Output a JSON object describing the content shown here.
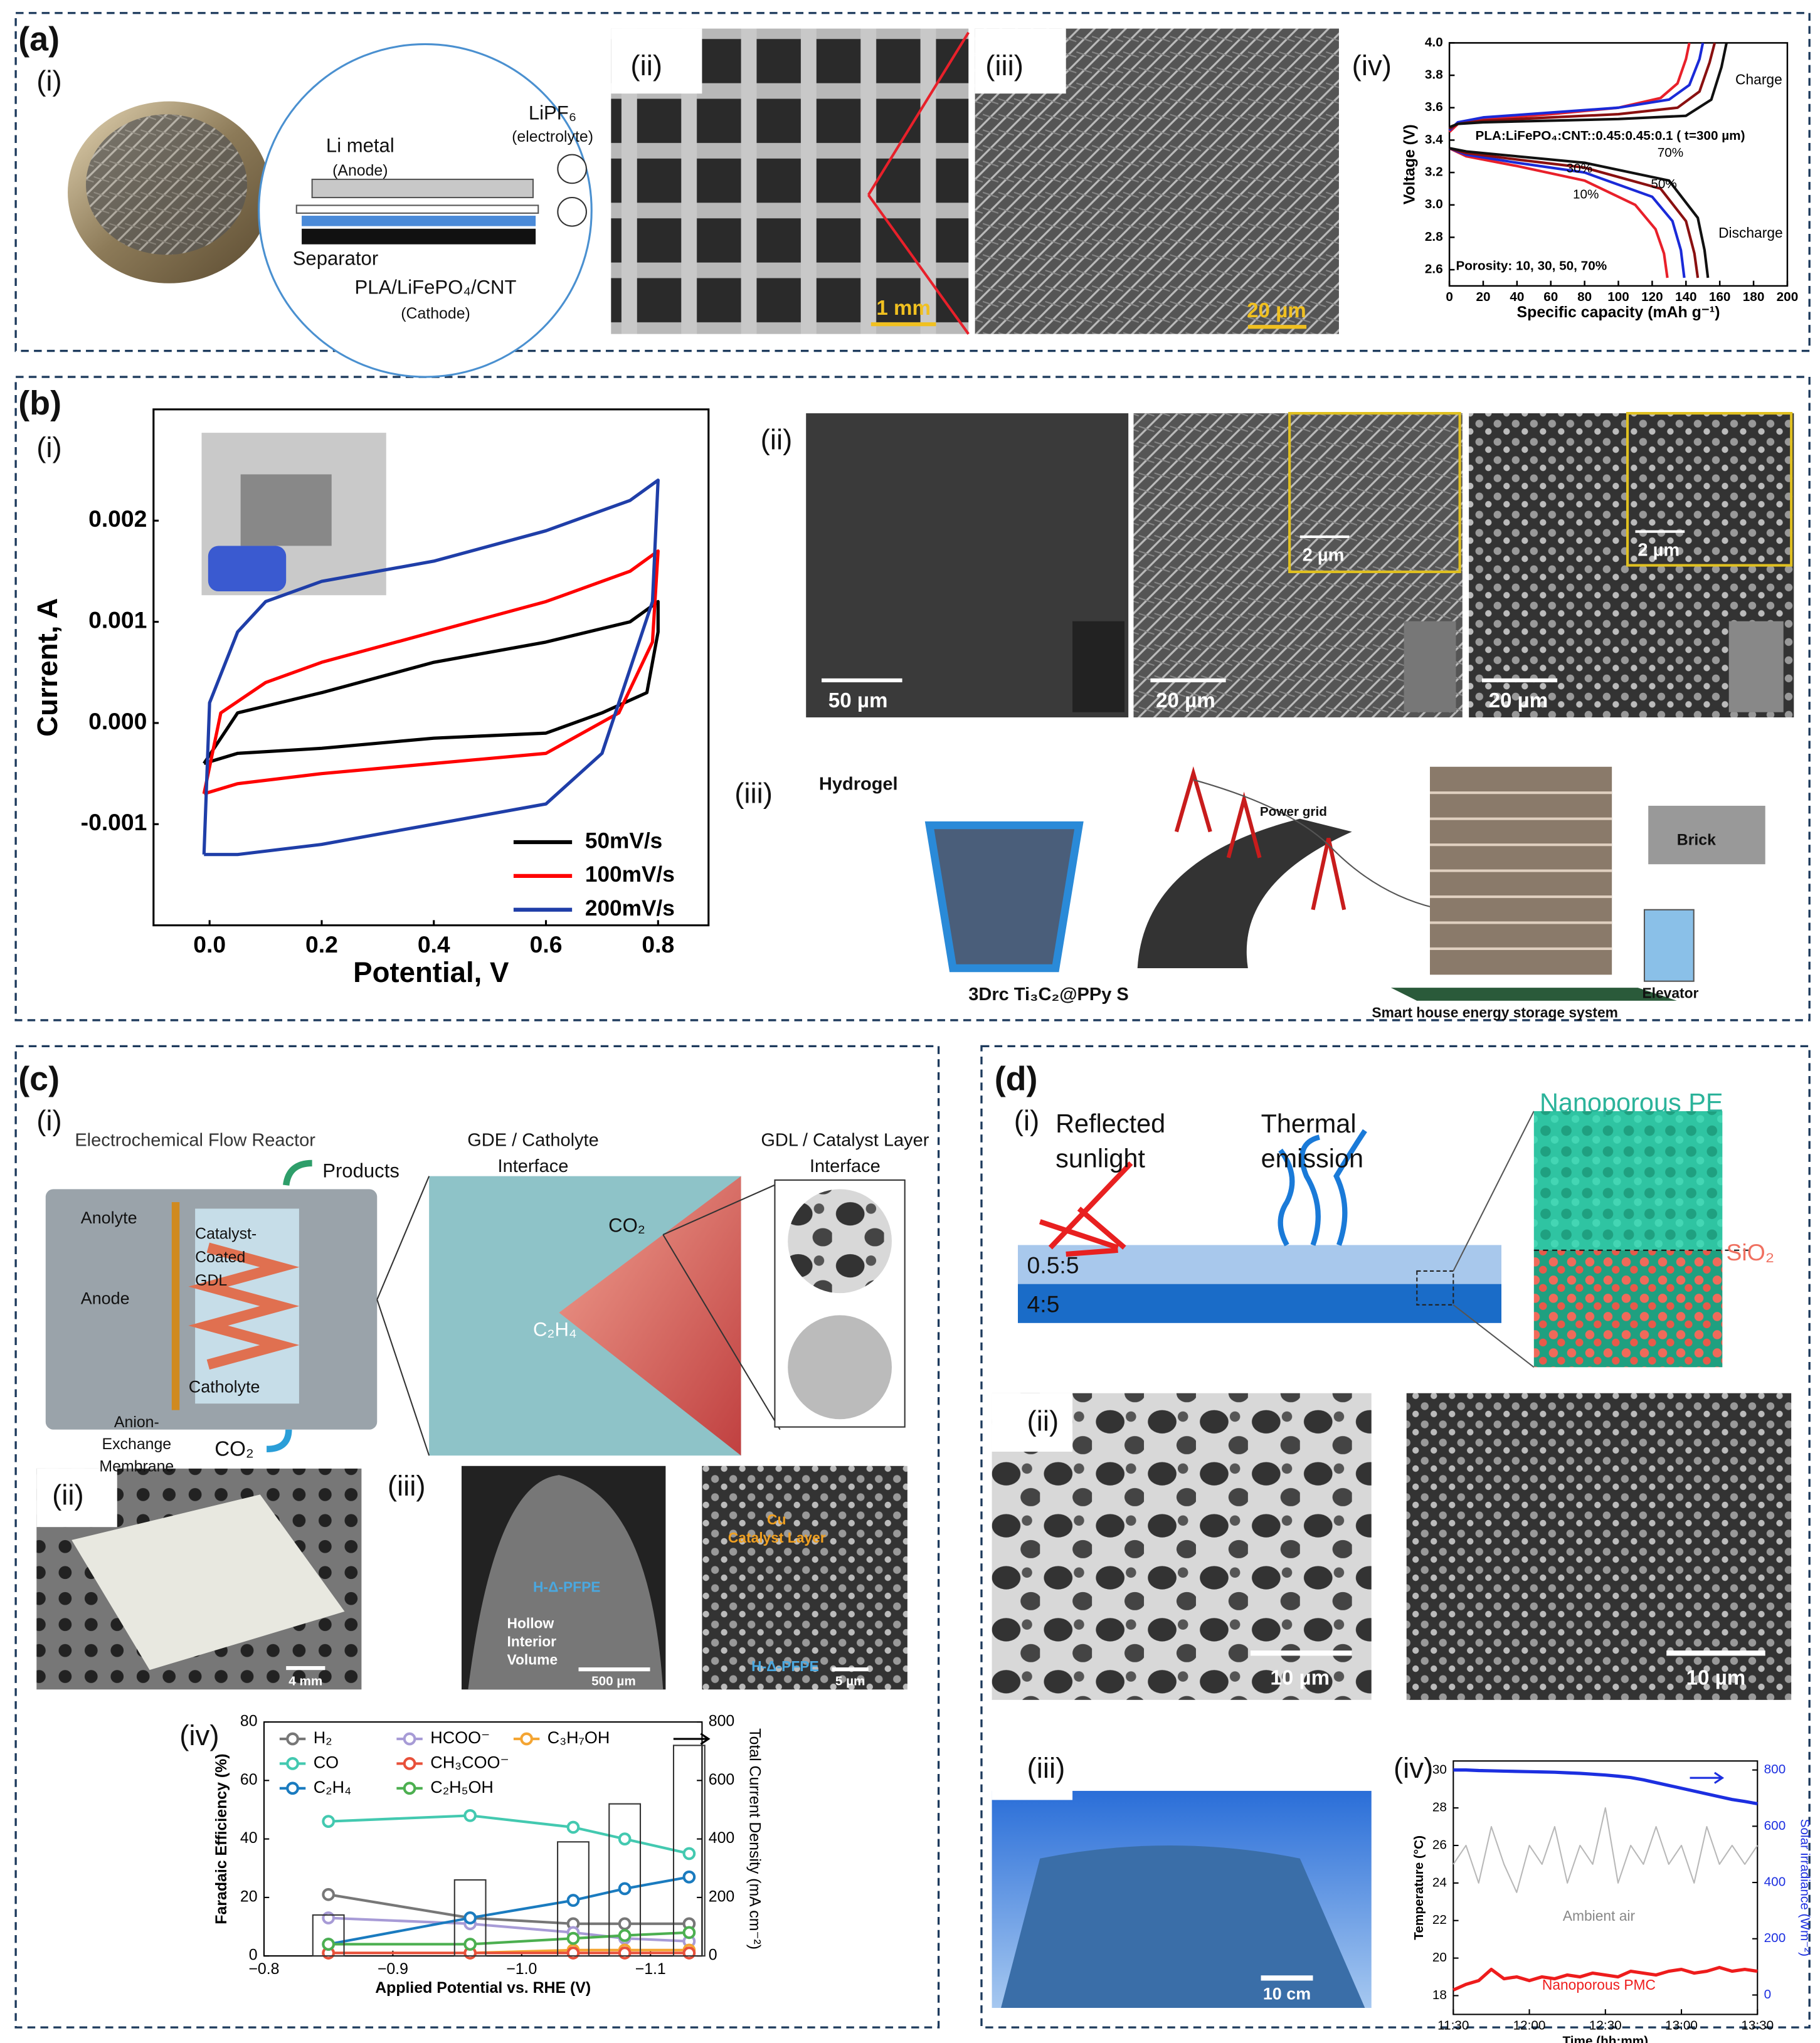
{
  "texts": [
    "(a)",
    "(i)",
    "Li metal",
    "(Anode)",
    "LiPF₆",
    "(electrolyte)",
    "Separator",
    "PLA/LiFePO₄/CNT",
    "(Cathode)",
    "(ii)",
    "1 mm",
    "(iii)",
    "20 µm",
    "(iv)",
    "(b)",
    "(i)",
    "(ii)",
    "50 µm",
    "20 µm",
    "2 µm",
    "20 µm",
    "2 µm",
    "(iii)",
    "Hydrogel",
    "Power grid",
    "Brick",
    "Elevator",
    "3Drc Ti₃C₂@PPy S",
    "Smart house energy storage system",
    "(c)",
    "(i)",
    "Electrochemical Flow Reactor",
    "Products",
    "GDE / Catholyte",
    "Interface",
    "GDL / Catalyst Layer",
    "Interface",
    "Anolyte",
    "Catalyst-",
    "Coated",
    "GDL",
    "Anode",
    "Catholyte",
    "Anion-",
    "Exchange",
    "Membrane",
    "CO₂",
    "CO₂",
    "C₂H₄",
    "(ii)",
    "4 mm",
    "(iii)",
    "Hollow",
    "Interior",
    "Volume",
    "H-Δ-PFPE",
    "500 µm",
    "Cu",
    "Catalyst Layer",
    "H-Δ-PFPE",
    "5 µm",
    "(iv)",
    "(d)",
    "(i)",
    "Reflected",
    "sunlight",
    "Thermal",
    "emission",
    "Nanoporous PE",
    "SiO₂",
    "0.5:5",
    "4:5",
    "(ii)",
    "10 µm",
    "10 µm",
    "(iii)",
    "10 cm",
    "(iv)"
  ],
  "chart_data": [
    {
      "type": "line",
      "xlabel": "Specific capacity (mAh g⁻¹)",
      "ylabel": "Voltage (V)",
      "xlim": [
        0,
        200
      ],
      "xticks": [
        0,
        20,
        40,
        60,
        80,
        100,
        120,
        140,
        160,
        180,
        200
      ],
      "ylim": [
        2.5,
        4.0
      ],
      "yticks": [
        2.6,
        2.8,
        {
          "value": 3,
          "label": "3.0"
        },
        3.2,
        3.4,
        3.6,
        3.8,
        {
          "value": 4,
          "label": "4.0"
        }
      ],
      "annotations": [
        "Charge",
        "Discharge",
        "PLA:LiFePO₄:CNT::0.45:0.45:0.1 ( t=300 µm)",
        "Porosity: 10, 30, 50, 70%",
        "70%",
        "50%",
        "30%",
        "10%"
      ],
      "series": [
        {
          "color": "#e8202a",
          "x": [
            0,
            5,
            20,
            60,
            100,
            125,
            135,
            140,
            142
          ],
          "values": [
            3.45,
            3.5,
            3.53,
            3.56,
            3.6,
            3.66,
            3.75,
            3.9,
            4.0
          ]
        },
        {
          "color": "#1a2ad8",
          "x": [
            0,
            5,
            20,
            60,
            100,
            130,
            142,
            148,
            150
          ],
          "values": [
            3.46,
            3.51,
            3.54,
            3.57,
            3.6,
            3.65,
            3.74,
            3.9,
            4.0
          ]
        },
        {
          "color": "#8a1010",
          "x": [
            0,
            5,
            20,
            60,
            100,
            135,
            148,
            154,
            157
          ],
          "values": [
            3.47,
            3.5,
            3.52,
            3.54,
            3.56,
            3.6,
            3.7,
            3.88,
            4.0
          ]
        },
        {
          "color": "#111111",
          "x": [
            0,
            5,
            20,
            60,
            100,
            140,
            155,
            161,
            164
          ],
          "values": [
            3.48,
            3.5,
            3.51,
            3.52,
            3.53,
            3.55,
            3.65,
            3.85,
            4.0
          ]
        },
        {
          "color": "#e8202a",
          "x": [
            0,
            10,
            40,
            80,
            110,
            122,
            127,
            129
          ],
          "values": [
            3.35,
            3.3,
            3.24,
            3.15,
            3.0,
            2.85,
            2.7,
            2.55
          ]
        },
        {
          "color": "#1a2ad8",
          "x": [
            0,
            10,
            40,
            80,
            120,
            132,
            137,
            139
          ],
          "values": [
            3.35,
            3.31,
            3.26,
            3.2,
            3.05,
            2.9,
            2.72,
            2.55
          ]
        },
        {
          "color": "#8a1010",
          "x": [
            0,
            10,
            40,
            80,
            125,
            140,
            145,
            147
          ],
          "values": [
            3.35,
            3.32,
            3.28,
            3.23,
            3.1,
            2.9,
            2.7,
            2.55
          ]
        },
        {
          "color": "#111111",
          "x": [
            0,
            10,
            40,
            80,
            130,
            147,
            151,
            153
          ],
          "values": [
            3.35,
            3.33,
            3.3,
            3.26,
            3.15,
            2.92,
            2.72,
            2.55
          ]
        }
      ]
    },
    {
      "type": "line",
      "xlabel": "Potential, V",
      "ylabel": "Current, A",
      "xlim": [
        -0.1,
        0.89
      ],
      "xticks": [
        {
          "value": 0,
          "label": "0.0"
        },
        0.2,
        0.4,
        0.6,
        0.8
      ],
      "ylim": [
        -0.002,
        0.0031
      ],
      "yticks": [
        -0.001,
        {
          "value": 0,
          "label": "0.000"
        },
        0.001,
        0.002
      ],
      "legend": "lower right",
      "series": [
        {
          "name": "50mV/s",
          "color": "#000000",
          "x": [
            -0.01,
            0.05,
            0.2,
            0.4,
            0.6,
            0.75,
            0.8,
            0.8,
            0.78,
            0.7,
            0.6,
            0.4,
            0.2,
            0.05,
            -0.01
          ],
          "values": [
            -0.0004,
            0.0001,
            0.0003,
            0.0006,
            0.0008,
            0.001,
            0.0012,
            0.0009,
            0.0003,
            0.0001,
            -0.0001,
            -0.00015,
            -0.00025,
            -0.0003,
            -0.0004
          ]
        },
        {
          "name": "100mV/s",
          "color": "#ff0000",
          "x": [
            -0.01,
            0.02,
            0.1,
            0.2,
            0.4,
            0.6,
            0.75,
            0.8,
            0.79,
            0.73,
            0.6,
            0.4,
            0.2,
            0.05,
            -0.01
          ],
          "values": [
            -0.0007,
            0.0001,
            0.0004,
            0.0006,
            0.0009,
            0.0012,
            0.0015,
            0.0017,
            0.0008,
            0.0001,
            -0.0003,
            -0.0004,
            -0.0005,
            -0.0006,
            -0.0007
          ]
        },
        {
          "name": "200mV/s",
          "color": "#1f3ea8",
          "x": [
            -0.01,
            0,
            0.05,
            0.1,
            0.2,
            0.4,
            0.6,
            0.75,
            0.8,
            0.79,
            0.7,
            0.6,
            0.4,
            0.2,
            0.05,
            -0.01
          ],
          "values": [
            -0.0013,
            0.0002,
            0.0009,
            0.0012,
            0.0014,
            0.0016,
            0.0019,
            0.0022,
            0.0024,
            0.0012,
            -0.0003,
            -0.0008,
            -0.001,
            -0.0012,
            -0.0013,
            -0.0013
          ]
        }
      ]
    },
    {
      "type": "line",
      "xlabel": "Applied Potential vs. RHE (V)",
      "ylabel": "Faradaic Efficiency (%)",
      "y2label": "Total Current Density (mA cm⁻²)",
      "xlim": [
        -0.8,
        -1.14
      ],
      "xticks": [
        {
          "value": -0.8,
          "label": "−0.8"
        },
        {
          "value": -0.9,
          "label": "−0.9"
        },
        {
          "value": -1,
          "label": "−1.0"
        },
        {
          "value": -1.1,
          "label": "−1.1"
        }
      ],
      "ylim": [
        0,
        80
      ],
      "yticks": [
        0,
        20,
        40,
        60,
        80
      ],
      "y2lim": [
        0,
        800
      ],
      "y2ticks": [
        0,
        200,
        400,
        600,
        800
      ],
      "x": [
        -0.85,
        -0.96,
        -1.04,
        -1.08,
        -1.13
      ],
      "series": [
        {
          "name": "H₂",
          "color": "#777777",
          "values": [
            21,
            13,
            11,
            11,
            11
          ]
        },
        {
          "name": "HCOO⁻",
          "color": "#a79bd6",
          "values": [
            13,
            11,
            8,
            6,
            5
          ]
        },
        {
          "name": "C₃H₇OH",
          "color": "#f4a533",
          "values": [
            1,
            1,
            2,
            2,
            2
          ]
        },
        {
          "name": "CO",
          "color": "#43c9b0",
          "values": [
            46,
            48,
            44,
            40,
            35
          ]
        },
        {
          "name": "CH₃COO⁻",
          "color": "#e8503a",
          "values": [
            1,
            1,
            1,
            1,
            1
          ]
        },
        {
          "name": "C₂H₄",
          "color": "#1a7bbf",
          "values": [
            4,
            13,
            19,
            23,
            27
          ]
        },
        {
          "name": "C₂H₅OH",
          "color": "#4caf50",
          "values": [
            4,
            4,
            6,
            7,
            8
          ]
        },
        {
          "color": "#333333",
          "axis": "y2",
          "style": "bar",
          "values": [
            140,
            260,
            390,
            520,
            720
          ]
        }
      ]
    },
    {
      "type": "line",
      "xlabel": "Time (hh:mm)",
      "ylabel": "Temperature (°C)",
      "y2label": "Solar irradiance (Wm⁻²)",
      "xlim": [
        "11:30",
        "13:30"
      ],
      "xticks": [
        "11:30",
        "12:00",
        "12:30",
        "13:00",
        "13:30"
      ],
      "ylim": [
        17,
        30.5
      ],
      "yticks": [
        18,
        20,
        22,
        24,
        26,
        28,
        30
      ],
      "y2lim": [
        -69,
        832
      ],
      "y2ticks": [
        0,
        200,
        400,
        600,
        800
      ],
      "annotations": [
        "Ambient air",
        "Nanoporous PMC"
      ],
      "x": [
        "11:30",
        "11:35",
        "11:40",
        "11:45",
        "11:50",
        "11:55",
        "12:00",
        "12:05",
        "12:10",
        "12:15",
        "12:20",
        "12:25",
        "12:30",
        "12:35",
        "12:40",
        "12:45",
        "12:50",
        "12:55",
        "13:00",
        "13:05",
        "13:10",
        "13:15",
        "13:20",
        "13:25",
        "13:30"
      ],
      "series": [
        {
          "color": "#b8b8b8",
          "values": [
            25,
            26,
            24,
            27,
            25,
            23.5,
            26,
            25,
            27,
            24,
            26,
            25,
            28,
            24,
            26,
            25,
            27,
            25,
            26,
            24,
            27,
            25,
            26,
            25,
            26
          ]
        },
        {
          "color": "#ee1c1c",
          "values": [
            18.3,
            18.6,
            18.8,
            19.4,
            18.9,
            19.0,
            18.8,
            19.0,
            18.9,
            19.1,
            19.0,
            19.2,
            19.1,
            19.0,
            19.3,
            19.2,
            19.1,
            19.3,
            19.4,
            19.2,
            19.3,
            19.5,
            19.3,
            19.4,
            19.3
          ]
        },
        {
          "color": "#1c2fe0",
          "axis": "y2",
          "values": [
            800,
            800,
            798,
            797,
            796,
            795,
            794,
            793,
            792,
            790,
            788,
            785,
            782,
            778,
            773,
            765,
            755,
            745,
            735,
            725,
            715,
            705,
            695,
            688,
            680
          ]
        }
      ]
    }
  ]
}
